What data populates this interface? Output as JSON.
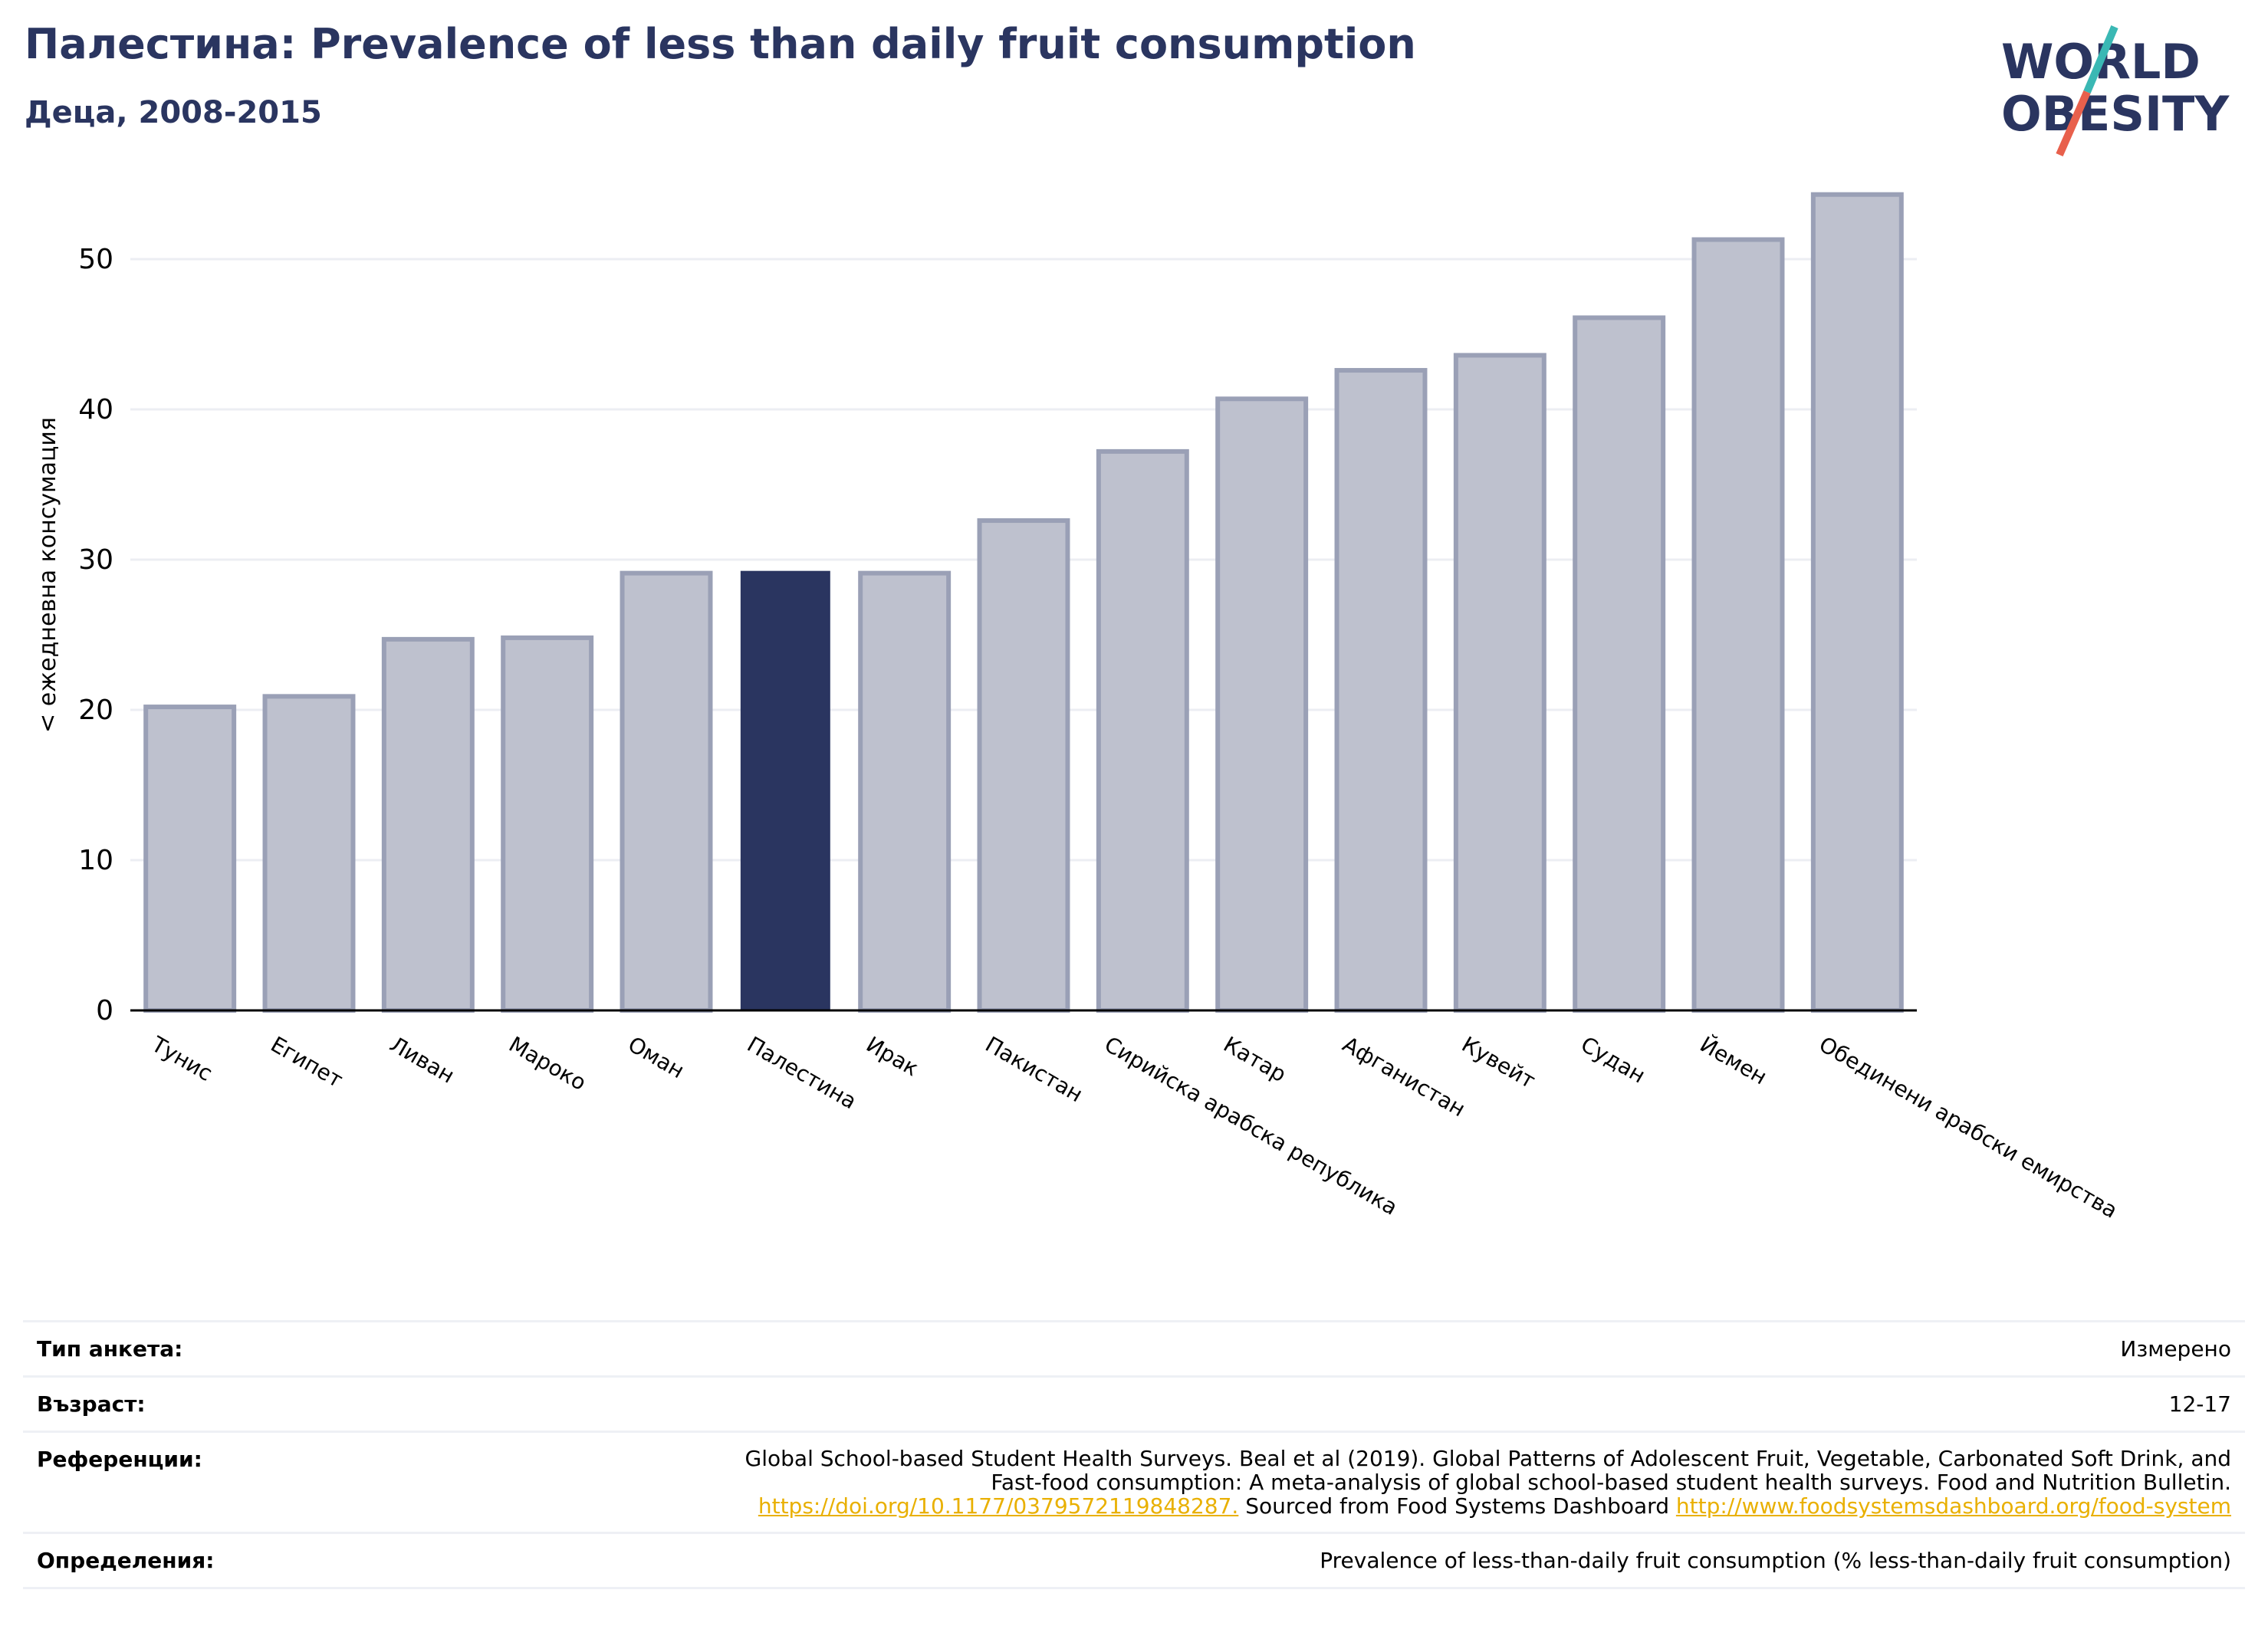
{
  "header": {
    "title": "Палестина: Prevalence of less than daily fruit consumption",
    "subtitle": "Деца, 2008-2015"
  },
  "logo": {
    "line1": "WORLD",
    "line2": "OBESITY"
  },
  "colors": {
    "bar": "#2a3560",
    "muted_bar": "#bec1ce",
    "muted_edge": "#9aa0b6",
    "accent_teal": "#3ab8b4",
    "accent_red": "#e8604c"
  },
  "chart_data": {
    "type": "bar",
    "ylabel": "< ежедневна консумация",
    "xlabel": "",
    "ylim": [
      0,
      55
    ],
    "yticks": [
      0,
      10,
      20,
      30,
      40,
      50
    ],
    "grid": true,
    "highlight": "Палестина",
    "categories": [
      "Тунис",
      "Египет",
      "Ливан",
      "Мароко",
      "Оман",
      "Палестина",
      "Ирак",
      "Пакистан",
      "Сирийска арабска република",
      "Катар",
      "Афганистан",
      "Кувейт",
      "Судан",
      "Йемен",
      "Обединени арабски емирства"
    ],
    "values": [
      20.2,
      20.9,
      24.7,
      24.8,
      29.1,
      29.2,
      29.1,
      32.6,
      37.2,
      40.7,
      42.6,
      43.6,
      46.1,
      51.3,
      54.3
    ]
  },
  "meta": {
    "survey_type": {
      "label": "Тип анкета:",
      "value": "Измерено"
    },
    "age": {
      "label": "Възраст:",
      "value": "12-17"
    },
    "references": {
      "label": "Референции:",
      "line1": "Global School-based Student Health Surveys. Beal et al (2019). Global Patterns of Adolescent Fruit, Vegetable, Carbonated Soft Drink, and",
      "line2": "Fast-food consumption: A meta-analysis of global school-based student health surveys. Food and Nutrition Bulletin.",
      "doi": "https://doi.org/10.1177/0379572119848287.",
      "sourced": " Sourced from Food Systems Dashboard ",
      "url": "http://www.foodsystemsdashboard.org/food-system"
    },
    "definitions": {
      "label": "Определения:",
      "value": "Prevalence of less-than-daily fruit consumption (% less-than-daily fruit consumption)"
    }
  }
}
